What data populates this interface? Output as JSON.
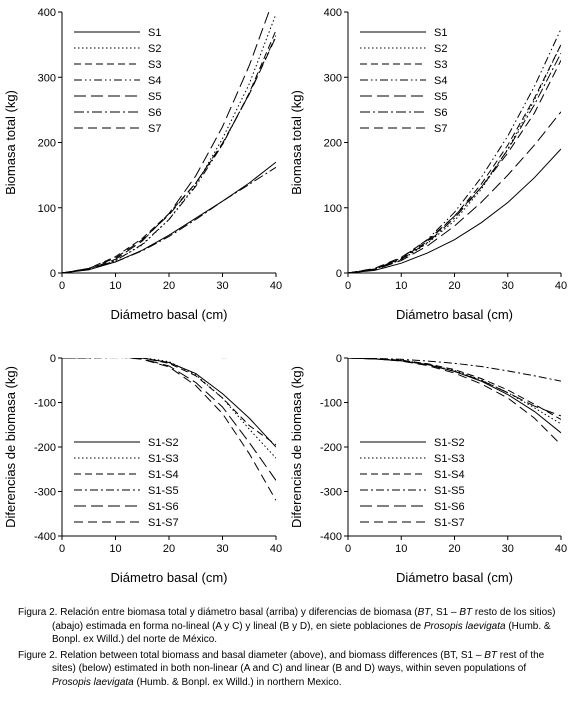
{
  "chart_data": [
    {
      "type": "line",
      "xlabel": "Diámetro basal (cm)",
      "ylabel": "Biomasa total (kg)",
      "xlim": [
        0,
        40
      ],
      "ylim": [
        0,
        400
      ],
      "xticks": [
        0,
        10,
        20,
        30,
        40
      ],
      "yticks": [
        0,
        100,
        200,
        300,
        400
      ],
      "legend_position": "top-left",
      "x": [
        0,
        5,
        10,
        15,
        20,
        25,
        30,
        35,
        40
      ],
      "series": [
        {
          "name": "S1",
          "values": [
            0,
            5,
            17,
            35,
            58,
            84,
            110,
            138,
            170
          ]
        },
        {
          "name": "S2",
          "values": [
            0,
            5,
            19,
            43,
            82,
            135,
            206,
            290,
            397
          ]
        },
        {
          "name": "S3",
          "values": [
            0,
            7,
            25,
            53,
            91,
            138,
            197,
            276,
            372
          ]
        },
        {
          "name": "S4",
          "values": [
            0,
            5,
            19,
            44,
            82,
            133,
            197,
            275,
            364
          ]
        },
        {
          "name": "S5",
          "values": [
            0,
            6,
            21,
            49,
            91,
            149,
            224,
            318,
            430
          ]
        },
        {
          "name": "S6",
          "values": [
            0,
            6,
            17,
            34,
            56,
            82,
            110,
            136,
            162
          ]
        },
        {
          "name": "S7",
          "values": [
            0,
            7,
            23,
            51,
            89,
            138,
            199,
            274,
            362
          ]
        }
      ]
    },
    {
      "type": "line",
      "xlabel": "Diámetro basal (cm)",
      "ylabel": "Biomasa total (kg)",
      "xlim": [
        0,
        40
      ],
      "ylim": [
        0,
        400
      ],
      "xticks": [
        0,
        10,
        20,
        30,
        40
      ],
      "yticks": [
        0,
        100,
        200,
        300,
        400
      ],
      "legend_position": "top-left",
      "x": [
        0,
        5,
        10,
        15,
        20,
        25,
        30,
        35,
        40
      ],
      "series": [
        {
          "name": "S1",
          "values": [
            0,
            4,
            15,
            31,
            51,
            77,
            108,
            146,
            190
          ]
        },
        {
          "name": "S2",
          "values": [
            0,
            6,
            20,
            46,
            80,
            128,
            190,
            265,
            350
          ]
        },
        {
          "name": "S3",
          "values": [
            0,
            6,
            22,
            49,
            87,
            136,
            196,
            268,
            350
          ]
        },
        {
          "name": "S4",
          "values": [
            0,
            6,
            23,
            52,
            93,
            146,
            210,
            286,
            374
          ]
        },
        {
          "name": "S5",
          "values": [
            0,
            5,
            19,
            42,
            72,
            108,
            150,
            196,
            247
          ]
        },
        {
          "name": "S6",
          "values": [
            0,
            6,
            21,
            47,
            84,
            131,
            189,
            258,
            337
          ]
        },
        {
          "name": "S7",
          "values": [
            0,
            7,
            24,
            51,
            87,
            131,
            184,
            245,
            326
          ]
        }
      ]
    },
    {
      "type": "line",
      "xlabel": "Diámetro basal (cm)",
      "ylabel": "Diferencias de biomasa (kg)",
      "xlim": [
        0,
        40
      ],
      "ylim": [
        -400,
        0
      ],
      "xticks": [
        0,
        10,
        20,
        30,
        40
      ],
      "yticks": [
        0,
        -100,
        -200,
        -300,
        -400
      ],
      "legend_position": "lower-left",
      "x": [
        0,
        5,
        10,
        15,
        20,
        25,
        30,
        35,
        40
      ],
      "series": [
        {
          "name": "S1-S2",
          "values": [
            0,
            1,
            3,
            0,
            -10,
            -35,
            -80,
            -135,
            -200
          ]
        },
        {
          "name": "S1-S3",
          "values": [
            0,
            2,
            4,
            1,
            -8,
            -38,
            -90,
            -160,
            -225
          ]
        },
        {
          "name": "S1-S4",
          "values": [
            0,
            2,
            4,
            0,
            -12,
            -40,
            -90,
            -152,
            -195
          ]
        },
        {
          "name": "S1-S5",
          "values": [
            0,
            0,
            1,
            1,
            2,
            2,
            1,
            2,
            8
          ]
        },
        {
          "name": "S1-S6",
          "values": [
            0,
            1,
            3,
            -2,
            -18,
            -55,
            -110,
            -190,
            -275
          ]
        },
        {
          "name": "S1-S7",
          "values": [
            0,
            2,
            3,
            -3,
            -20,
            -62,
            -125,
            -215,
            -320
          ]
        }
      ]
    },
    {
      "type": "line",
      "xlabel": "Diámetro basal (cm)",
      "ylabel": "Diferencias de biomasa (kg)",
      "xlim": [
        0,
        40
      ],
      "ylim": [
        -400,
        0
      ],
      "xticks": [
        0,
        10,
        20,
        30,
        40
      ],
      "yticks": [
        0,
        -100,
        -200,
        -300,
        -400
      ],
      "legend_position": "lower-left",
      "x": [
        0,
        5,
        10,
        15,
        20,
        25,
        30,
        35,
        40
      ],
      "series": [
        {
          "name": "S1-S2",
          "values": [
            0,
            -2,
            -6,
            -15,
            -30,
            -52,
            -82,
            -120,
            -168
          ]
        },
        {
          "name": "S1-S3",
          "values": [
            0,
            -2,
            -5,
            -14,
            -28,
            -49,
            -78,
            -112,
            -148
          ]
        },
        {
          "name": "S1-S4",
          "values": [
            0,
            -1,
            -5,
            -13,
            -26,
            -46,
            -72,
            -104,
            -138
          ]
        },
        {
          "name": "S1-S5",
          "values": [
            0,
            -1,
            -3,
            -7,
            -12,
            -19,
            -29,
            -40,
            -52
          ]
        },
        {
          "name": "S1-S6",
          "values": [
            0,
            -2,
            -6,
            -15,
            -30,
            -50,
            -78,
            -108,
            -130
          ]
        },
        {
          "name": "S1-S7",
          "values": [
            0,
            -2,
            -7,
            -17,
            -34,
            -58,
            -90,
            -135,
            -195
          ]
        }
      ]
    }
  ],
  "caption": {
    "es_prefix": "Figura 2. Relación entre biomasa total y diámetro basal (arriba) y diferencias de biomasa (",
    "es_bt1": "BT",
    "es_mid": ", S1 – ",
    "es_bt2": "BT",
    "es_rest": " resto de los sitios) (abajo) estimada en forma no-lineal (A y C) y lineal (B y D), en siete poblaciones de ",
    "es_species": "Prosopis laevigata",
    "es_end": " (Humb. & Bonpl. ex Willd.) del norte de México.",
    "en_prefix": "Figure 2. Relation between total biomass and basal diameter (above), and biomass differences (BT, S1 – ",
    "en_bt": "BT",
    "en_rest": " rest of the sites) (below) estimated in both non-linear (A and C) and linear (B and D) ways, within seven populations of ",
    "en_species": "Prosopis laevigata",
    "en_end": " (Humb. & Bonpl. ex Willd.) in northern Mexico."
  }
}
